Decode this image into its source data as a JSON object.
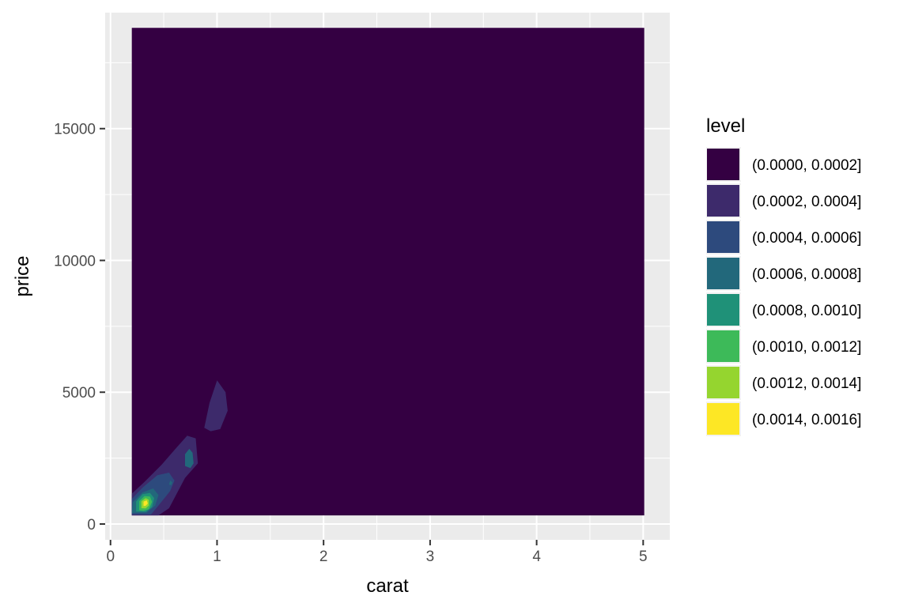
{
  "chart_data": {
    "type": "contour-filled-density",
    "title": "",
    "xlabel": "carat",
    "ylabel": "price",
    "xlim": [
      -0.05,
      5.25
    ],
    "ylim": [
      -600,
      19400
    ],
    "x_ticks": [
      0,
      1,
      2,
      3,
      4,
      5
    ],
    "y_ticks": [
      0,
      5000,
      10000,
      15000
    ],
    "x_tick_labels": [
      "0",
      "1",
      "2",
      "3",
      "4",
      "5"
    ],
    "y_tick_labels": [
      "0",
      "5000",
      "10000",
      "15000"
    ],
    "data_extent": {
      "x": [
        0.2,
        5.01
      ],
      "y": [
        326,
        18823
      ]
    },
    "grid": true,
    "legend": {
      "title": "level",
      "placement": "right",
      "entries": [
        {
          "label": "(0.0000, 0.0002]",
          "color": "#340042"
        },
        {
          "label": "(0.0002, 0.0004]",
          "color": "#3D2A6B"
        },
        {
          "label": "(0.0004, 0.0006]",
          "color": "#2D4A7D"
        },
        {
          "label": "(0.0006, 0.0008]",
          "color": "#22687B"
        },
        {
          "label": "(0.0008, 0.0010]",
          "color": "#1F9178"
        },
        {
          "label": "(0.0010, 0.0012]",
          "color": "#3DBA59"
        },
        {
          "label": "(0.0012, 0.0014]",
          "color": "#95D52F"
        },
        {
          "label": "(0.0014, 0.0016]",
          "color": "#FDE725"
        }
      ]
    },
    "contours": [
      {
        "level": 1,
        "polygons": [
          [
            [
              0.2,
              326
            ],
            [
              0.2,
              1150
            ],
            [
              0.32,
              1600
            ],
            [
              0.48,
              2250
            ],
            [
              0.62,
              2900
            ],
            [
              0.72,
              3350
            ],
            [
              0.8,
              3250
            ],
            [
              0.82,
              2300
            ],
            [
              0.7,
              1750
            ],
            [
              0.55,
              600
            ],
            [
              0.45,
              326
            ]
          ],
          [
            [
              0.88,
              3650
            ],
            [
              0.93,
              4600
            ],
            [
              1.0,
              5450
            ],
            [
              1.08,
              5000
            ],
            [
              1.1,
              4300
            ],
            [
              1.03,
              3600
            ],
            [
              0.94,
              3520
            ]
          ]
        ]
      },
      {
        "level": 2,
        "polygons": [
          [
            [
              0.2,
              360
            ],
            [
              0.2,
              950
            ],
            [
              0.3,
              1380
            ],
            [
              0.44,
              1850
            ],
            [
              0.55,
              1950
            ],
            [
              0.6,
              1650
            ],
            [
              0.56,
              1250
            ],
            [
              0.45,
              700
            ],
            [
              0.38,
              360
            ]
          ]
        ]
      },
      {
        "level": 3,
        "polygons": [
          [
            [
              0.2,
              420
            ],
            [
              0.21,
              830
            ],
            [
              0.3,
              1200
            ],
            [
              0.4,
              1350
            ],
            [
              0.45,
              1100
            ],
            [
              0.42,
              700
            ],
            [
              0.34,
              430
            ]
          ],
          [
            [
              0.7,
              2200
            ],
            [
              0.7,
              2650
            ],
            [
              0.74,
              2850
            ],
            [
              0.77,
              2700
            ],
            [
              0.78,
              2300
            ],
            [
              0.75,
              2120
            ]
          ],
          [
            [
              0.55,
              1500
            ],
            [
              0.56,
              1650
            ],
            [
              0.58,
              1580
            ],
            [
              0.57,
              1470
            ]
          ]
        ]
      },
      {
        "level": 4,
        "polygons": [
          [
            [
              0.24,
              470
            ],
            [
              0.24,
              850
            ],
            [
              0.3,
              1130
            ],
            [
              0.37,
              1180
            ],
            [
              0.41,
              980
            ],
            [
              0.39,
              640
            ],
            [
              0.33,
              460
            ]
          ]
        ]
      },
      {
        "level": 5,
        "polygons": [
          [
            [
              0.27,
              520
            ],
            [
              0.27,
              870
            ],
            [
              0.32,
              1060
            ],
            [
              0.37,
              1040
            ],
            [
              0.39,
              840
            ],
            [
              0.36,
              560
            ],
            [
              0.31,
              500
            ]
          ]
        ]
      },
      {
        "level": 6,
        "polygons": [
          [
            [
              0.29,
              600
            ],
            [
              0.29,
              860
            ],
            [
              0.33,
              980
            ],
            [
              0.36,
              920
            ],
            [
              0.36,
              700
            ],
            [
              0.33,
              590
            ]
          ]
        ]
      },
      {
        "level": 7,
        "polygons": [
          [
            [
              0.31,
              680
            ],
            [
              0.31,
              850
            ],
            [
              0.34,
              900
            ],
            [
              0.35,
              780
            ],
            [
              0.33,
              690
            ]
          ]
        ]
      }
    ]
  }
}
